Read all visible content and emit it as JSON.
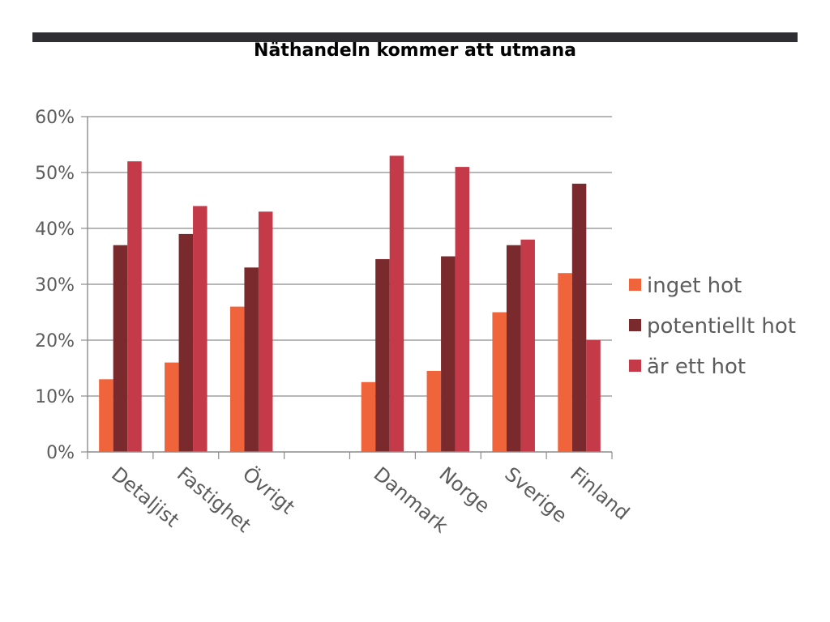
{
  "slide": {
    "title": "Näthandeln kommer att utmana"
  },
  "chart_data": {
    "type": "bar",
    "categories": [
      "Detaljist",
      "Fastighet",
      "Övrigt",
      "",
      "Danmark",
      "Norge",
      "Sverige",
      "Finland"
    ],
    "series": [
      {
        "name": "inget hot",
        "color": "#f0643c",
        "values": [
          13,
          16,
          26,
          null,
          12.5,
          14.5,
          25,
          32
        ]
      },
      {
        "name": "potentiellt hot",
        "color": "#7a2a2c",
        "values": [
          37,
          39,
          33,
          null,
          34.5,
          35,
          37,
          48
        ]
      },
      {
        "name": "är ett hot",
        "color": "#c43a48",
        "values": [
          52,
          44,
          43,
          null,
          53,
          51,
          38,
          20
        ]
      }
    ],
    "ylim": [
      0,
      60
    ],
    "yticks": [
      0,
      10,
      20,
      30,
      40,
      50,
      60
    ],
    "ytick_labels": [
      "0%",
      "10%",
      "20%",
      "30%",
      "40%",
      "50%",
      "60%"
    ],
    "grid": true,
    "legend_position": "right"
  }
}
